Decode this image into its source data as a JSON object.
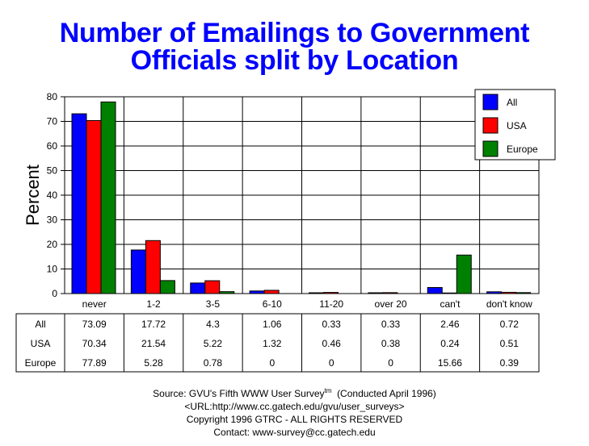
{
  "title_line1": "Number of Emailings to Government",
  "title_line2": "Officials split by Location",
  "chart_data": {
    "type": "bar",
    "categories": [
      "never",
      "1-2",
      "3-5",
      "6-10",
      "11-20",
      "over 20",
      "can't",
      "don't know"
    ],
    "series": [
      {
        "name": "All",
        "color": "#0000ff",
        "values": [
          73.09,
          17.72,
          4.3,
          1.06,
          0.33,
          0.33,
          2.46,
          0.72
        ]
      },
      {
        "name": "USA",
        "color": "#ff0000",
        "values": [
          70.34,
          21.54,
          5.22,
          1.32,
          0.46,
          0.38,
          0.24,
          0.51
        ]
      },
      {
        "name": "Europe",
        "color": "#008000",
        "values": [
          77.89,
          5.28,
          0.78,
          0,
          0,
          0,
          15.66,
          0.39
        ]
      }
    ],
    "ylabel": "Percent",
    "ylim": [
      0,
      80
    ],
    "yticks": [
      0,
      10,
      20,
      30,
      40,
      50,
      60,
      70,
      80
    ],
    "grid": true,
    "legend": "top-right",
    "table_rows": [
      {
        "label": "All",
        "values": [
          "73.09",
          "17.72",
          "4.3",
          "1.06",
          "0.33",
          "0.33",
          "2.46",
          "0.72"
        ]
      },
      {
        "label": "USA",
        "values": [
          "70.34",
          "21.54",
          "5.22",
          "1.32",
          "0.46",
          "0.38",
          "0.24",
          "0.51"
        ]
      },
      {
        "label": "Europe",
        "values": [
          "77.89",
          "5.28",
          "0.78",
          "0",
          "0",
          "0",
          "15.66",
          "0.39"
        ]
      }
    ]
  },
  "source": {
    "line1_prefix": "Source: GVU's Fifth WWW User Survey",
    "line1_sup": "tm",
    "line1_suffix": "(Conducted April 1996)",
    "line2": "<URL:http://www.cc.gatech.edu/gvu/user_surveys>",
    "line3": "Copyright 1996 GTRC -  ALL RIGHTS RESERVED",
    "line4": "Contact: www-survey@cc.gatech.edu"
  }
}
